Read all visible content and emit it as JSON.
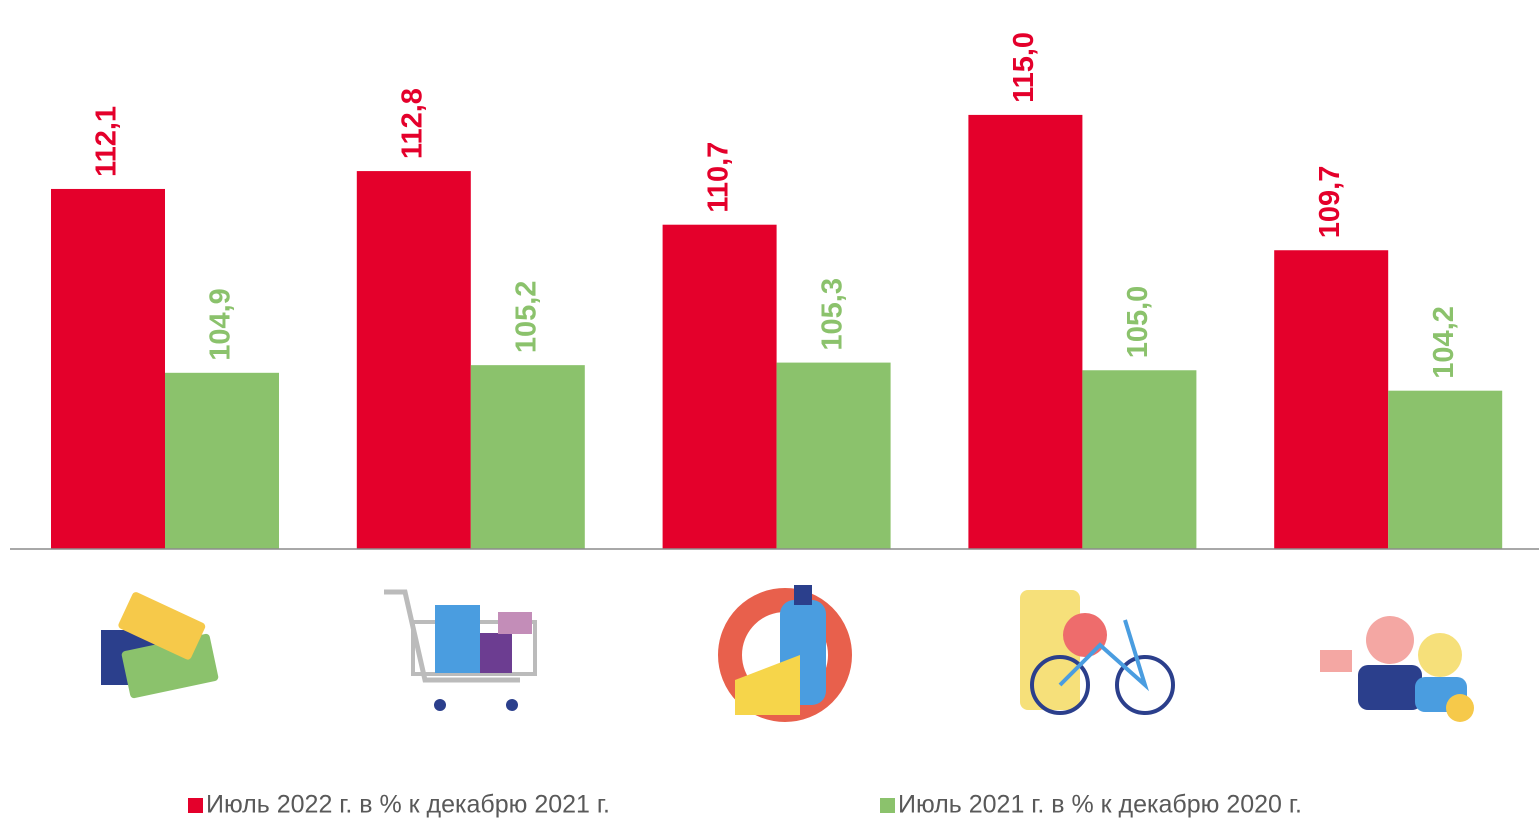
{
  "chart_data": {
    "type": "bar",
    "categories": [
      null,
      null,
      null,
      null,
      null
    ],
    "series": [
      {
        "name": "Июль 2022 г. в % к декабрю 2021 г.",
        "color": "#e4002b",
        "values": [
          112.1,
          112.8,
          110.7,
          115.0,
          109.7
        ],
        "value_labels": [
          "112,1",
          "112,8",
          "110,7",
          "115,0",
          "109,7"
        ]
      },
      {
        "name": "Июль 2021 г. в % к декабрю 2020 г.",
        "color": "#8bc26c",
        "values": [
          104.9,
          105.2,
          105.3,
          105.0,
          104.2
        ],
        "value_labels": [
          "104,9",
          "105,2",
          "105,3",
          "105,0",
          "104,2"
        ]
      }
    ],
    "ylim": [
      98,
      119.5
    ]
  }
}
